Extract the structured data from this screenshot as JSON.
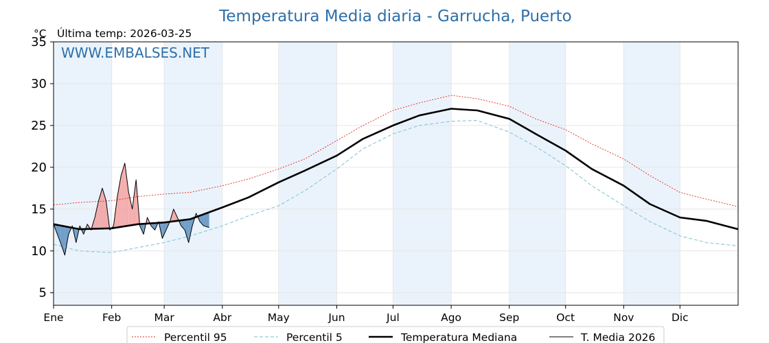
{
  "header": {
    "title": "Temperatura Media diaria - Garrucha, Puerto",
    "unit": "°C",
    "last_temp": "Última temp: 2026-03-25",
    "watermark": "WWW.EMBALSES.NET"
  },
  "colors": {
    "title": "#2e6fa8",
    "p95": "#e8231c",
    "p5": "#8fc9dc",
    "median": "#000000",
    "current": "#000000",
    "above_fill": "#f2a0a0",
    "below_fill": "#5c8fbf",
    "band": "#eaf3fb"
  },
  "chart_data": {
    "type": "line",
    "title": "Temperatura Media diaria - Garrucha, Puerto",
    "ylabel": "°C",
    "xlabel": "",
    "ylim": [
      3.5,
      35
    ],
    "yticks": [
      5,
      10,
      15,
      20,
      25,
      30
    ],
    "xlim_days": [
      1,
      366
    ],
    "x_tick_labels": [
      "Ene",
      "Feb",
      "Mar",
      "Abr",
      "May",
      "Jun",
      "Jul",
      "Ago",
      "Sep",
      "Oct",
      "Nov",
      "Dic"
    ],
    "grid": true,
    "legend_position": "bottom-center",
    "series": [
      {
        "name": "Percentil 95",
        "style": "dotted",
        "x_day": [
          1,
          15,
          32,
          46,
          60,
          74,
          91,
          105,
          121,
          135,
          152,
          166,
          182,
          196,
          213,
          227,
          244,
          258,
          274,
          288,
          305,
          319,
          335,
          349,
          366
        ],
        "values": [
          15.5,
          15.8,
          16.0,
          16.5,
          16.8,
          17.0,
          17.8,
          18.6,
          19.8,
          21.0,
          23.2,
          25.0,
          26.8,
          27.7,
          28.6,
          28.2,
          27.3,
          25.8,
          24.5,
          22.8,
          21.0,
          19.0,
          17.0,
          16.2,
          15.3
        ]
      },
      {
        "name": "Percentil 5",
        "style": "dashed",
        "x_day": [
          1,
          15,
          32,
          46,
          60,
          74,
          91,
          105,
          121,
          135,
          152,
          166,
          182,
          196,
          213,
          227,
          244,
          258,
          274,
          288,
          305,
          319,
          335,
          349,
          366
        ],
        "values": [
          10.8,
          10.0,
          9.8,
          10.4,
          11.0,
          11.8,
          13.0,
          14.2,
          15.4,
          17.2,
          19.8,
          22.2,
          24.0,
          25.0,
          25.5,
          25.6,
          24.2,
          22.5,
          20.2,
          17.8,
          15.4,
          13.5,
          11.8,
          11.0,
          10.6
        ]
      },
      {
        "name": "Temperatura Mediana",
        "style": "solid-thick",
        "x_day": [
          1,
          15,
          32,
          46,
          60,
          74,
          91,
          105,
          121,
          135,
          152,
          166,
          182,
          196,
          213,
          227,
          244,
          258,
          274,
          288,
          305,
          319,
          335,
          349,
          366
        ],
        "values": [
          13.2,
          12.6,
          12.7,
          13.2,
          13.4,
          13.8,
          15.2,
          16.4,
          18.2,
          19.6,
          21.4,
          23.4,
          25.0,
          26.2,
          27.0,
          26.8,
          25.8,
          24.0,
          22.0,
          19.8,
          17.8,
          15.6,
          14.0,
          13.6,
          12.6
        ]
      },
      {
        "name": "T. Media 2026",
        "style": "solid-thin",
        "x_day": [
          1,
          3,
          5,
          7,
          9,
          11,
          13,
          15,
          17,
          19,
          21,
          23,
          25,
          27,
          29,
          31,
          33,
          35,
          37,
          39,
          41,
          43,
          45,
          47,
          49,
          51,
          53,
          55,
          57,
          59,
          61,
          63,
          65,
          67,
          69,
          71,
          73,
          75,
          77,
          79,
          81,
          84
        ],
        "values": [
          13.2,
          12.0,
          10.8,
          9.5,
          12.0,
          13.0,
          11.0,
          13.0,
          12.0,
          13.2,
          12.5,
          14.0,
          16.0,
          17.5,
          16.0,
          12.5,
          13.0,
          16.5,
          19.0,
          20.5,
          17.0,
          15.0,
          18.5,
          13.0,
          12.0,
          14.0,
          13.0,
          12.5,
          13.5,
          11.5,
          12.5,
          13.5,
          15.0,
          14.0,
          13.0,
          12.5,
          11.0,
          13.0,
          14.5,
          13.5,
          13.0,
          12.8
        ]
      }
    ]
  },
  "legend": {
    "items": [
      {
        "label": "Percentil 95",
        "key": "p95"
      },
      {
        "label": "Percentil 5",
        "key": "p5"
      },
      {
        "label": "Temperatura Mediana",
        "key": "median"
      },
      {
        "label": "T. Media 2026",
        "key": "current"
      }
    ]
  }
}
